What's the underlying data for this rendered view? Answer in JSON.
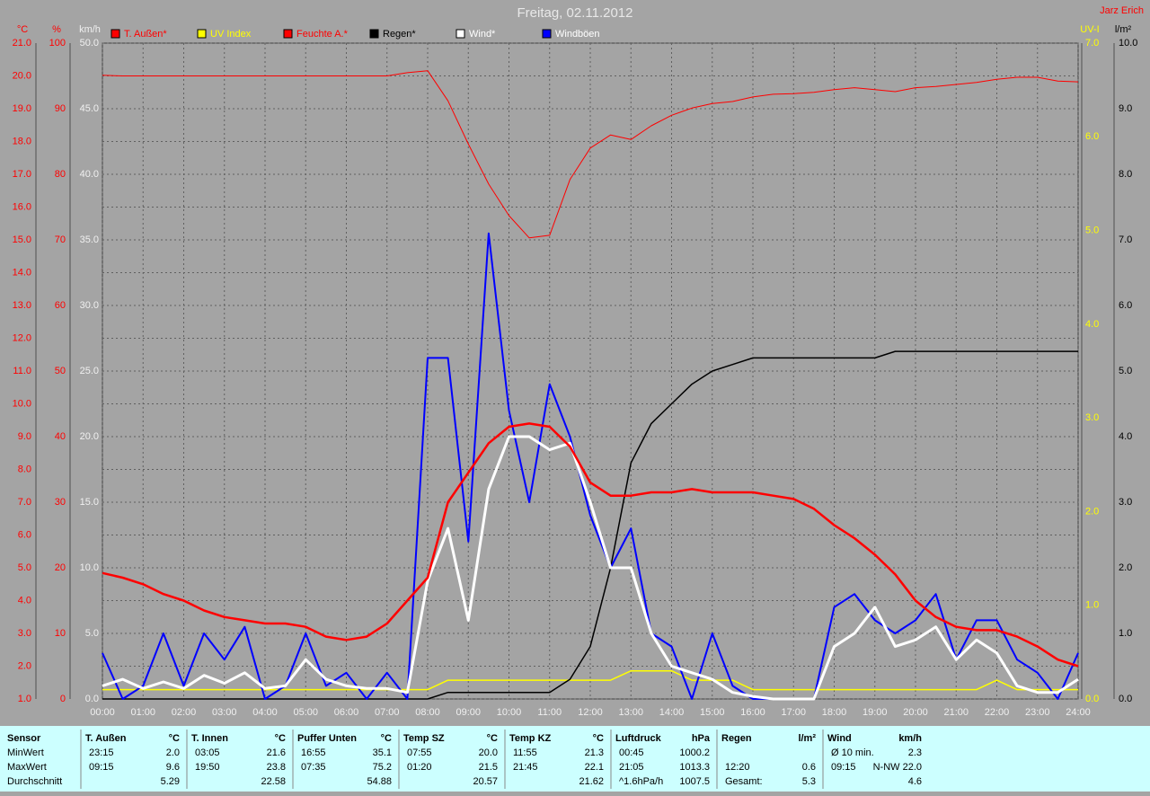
{
  "chart_data": {
    "type": "line",
    "title": "Freitag, 02.11.2012",
    "author": "Jarz Erich",
    "xlim": [
      0,
      24
    ],
    "xticks": [
      {
        "value": 0,
        "label": "00:00"
      },
      {
        "value": 1,
        "label": "01:00"
      },
      {
        "value": 2,
        "label": "02:00"
      },
      {
        "value": 3,
        "label": "03:00"
      },
      {
        "value": 4,
        "label": "04:00"
      },
      {
        "value": 5,
        "label": "05:00"
      },
      {
        "value": 6,
        "label": "06:00"
      },
      {
        "value": 7,
        "label": "07:00"
      },
      {
        "value": 8,
        "label": "08:00"
      },
      {
        "value": 9,
        "label": "09:00"
      },
      {
        "value": 10,
        "label": "10:00"
      },
      {
        "value": 11,
        "label": "11:00"
      },
      {
        "value": 12,
        "label": "12:00"
      },
      {
        "value": 13,
        "label": "13:00"
      },
      {
        "value": 14,
        "label": "14:00"
      },
      {
        "value": 15,
        "label": "15:00"
      },
      {
        "value": 16,
        "label": "16:00"
      },
      {
        "value": 17,
        "label": "17:00"
      },
      {
        "value": 18,
        "label": "18:00"
      },
      {
        "value": 19,
        "label": "19:00"
      },
      {
        "value": 20,
        "label": "20:00"
      },
      {
        "value": 21,
        "label": "21:00"
      },
      {
        "value": 22,
        "label": "22:00"
      },
      {
        "value": 23,
        "label": "23:00"
      },
      {
        "value": 24,
        "label": "24:00"
      }
    ],
    "grid": true,
    "axes": [
      {
        "label": "°C",
        "color": "#ff0000",
        "side": "left",
        "lim": [
          1,
          21
        ],
        "ticks": [
          {
            "value": 1,
            "label": "1.0"
          },
          {
            "value": 2,
            "label": "2.0"
          },
          {
            "value": 3,
            "label": "3.0"
          },
          {
            "value": 4,
            "label": "4.0"
          },
          {
            "value": 5,
            "label": "5.0"
          },
          {
            "value": 6,
            "label": "6.0"
          },
          {
            "value": 7,
            "label": "7.0"
          },
          {
            "value": 8,
            "label": "8.0"
          },
          {
            "value": 9,
            "label": "9.0"
          },
          {
            "value": 10,
            "label": "10.0"
          },
          {
            "value": 11,
            "label": "11.0"
          },
          {
            "value": 12,
            "label": "12.0"
          },
          {
            "value": 13,
            "label": "13.0"
          },
          {
            "value": 14,
            "label": "14.0"
          },
          {
            "value": 15,
            "label": "15.0"
          },
          {
            "value": 16,
            "label": "16.0"
          },
          {
            "value": 17,
            "label": "17.0"
          },
          {
            "value": 18,
            "label": "18.0"
          },
          {
            "value": 19,
            "label": "19.0"
          },
          {
            "value": 20,
            "label": "20.0"
          },
          {
            "value": 21,
            "label": "21.0"
          }
        ]
      },
      {
        "label": "%",
        "color": "#ff0000",
        "side": "left",
        "lim": [
          0,
          100
        ],
        "ticks": [
          0,
          10,
          20,
          30,
          40,
          50,
          60,
          70,
          80,
          90,
          100
        ]
      },
      {
        "label": "km/h",
        "color": "#f0f0f0",
        "side": "left",
        "lim": [
          0,
          50
        ],
        "ticks": [
          {
            "value": 0,
            "label": "0.0"
          },
          {
            "value": 5,
            "label": "5.0"
          },
          {
            "value": 10,
            "label": "10.0"
          },
          {
            "value": 15,
            "label": "15.0"
          },
          {
            "value": 20,
            "label": "20.0"
          },
          {
            "value": 25,
            "label": "25.0"
          },
          {
            "value": 30,
            "label": "30.0"
          },
          {
            "value": 35,
            "label": "35.0"
          },
          {
            "value": 40,
            "label": "40.0"
          },
          {
            "value": 45,
            "label": "45.0"
          },
          {
            "value": 50,
            "label": "50.0"
          }
        ]
      },
      {
        "label": "UV-I",
        "color": "#ffff00",
        "side": "right",
        "lim": [
          0,
          7
        ],
        "ticks": [
          {
            "value": 0,
            "label": "0.0"
          },
          {
            "value": 1,
            "label": "1.0"
          },
          {
            "value": 2,
            "label": "2.0"
          },
          {
            "value": 3,
            "label": "3.0"
          },
          {
            "value": 4,
            "label": "4.0"
          },
          {
            "value": 5,
            "label": "5.0"
          },
          {
            "value": 6,
            "label": "6.0"
          },
          {
            "value": 7,
            "label": "7.0"
          }
        ]
      },
      {
        "label": "l/m²",
        "color": "#000000",
        "side": "right",
        "lim": [
          0,
          10
        ],
        "ticks": [
          {
            "value": 0,
            "label": "0.0"
          },
          {
            "value": 1,
            "label": "1.0"
          },
          {
            "value": 2,
            "label": "2.0"
          },
          {
            "value": 3,
            "label": "3.0"
          },
          {
            "value": 4,
            "label": "4.0"
          },
          {
            "value": 5,
            "label": "5.0"
          },
          {
            "value": 6,
            "label": "6.0"
          },
          {
            "value": 7,
            "label": "7.0"
          },
          {
            "value": 8,
            "label": "8.0"
          },
          {
            "value": 9,
            "label": "9.0"
          },
          {
            "value": 10,
            "label": "10.0"
          }
        ]
      }
    ],
    "x": [
      0,
      0.5,
      1,
      1.5,
      2,
      2.5,
      3,
      3.5,
      4,
      4.5,
      5,
      5.5,
      6,
      6.5,
      7,
      7.5,
      8,
      8.5,
      9,
      9.5,
      10,
      10.5,
      11,
      11.5,
      12,
      12.5,
      13,
      13.5,
      14,
      14.5,
      15,
      15.5,
      16,
      16.5,
      17,
      17.5,
      18,
      18.5,
      19,
      19.5,
      20,
      20.5,
      21,
      21.5,
      22,
      22.5,
      23,
      23.5,
      24
    ],
    "series": [
      {
        "name": "T. Außen*",
        "color": "#ff0000",
        "axis": 0,
        "values": [
          4.84,
          4.7,
          4.5,
          4.2,
          4.0,
          3.7,
          3.5,
          3.4,
          3.3,
          3.3,
          3.2,
          2.9,
          2.8,
          2.9,
          3.3,
          4.0,
          4.7,
          7.0,
          7.9,
          8.8,
          9.3,
          9.4,
          9.3,
          8.7,
          7.6,
          7.2,
          7.2,
          7.3,
          7.3,
          7.4,
          7.3,
          7.3,
          7.3,
          7.2,
          7.1,
          6.8,
          6.3,
          5.9,
          5.4,
          4.8,
          4.0,
          3.5,
          3.2,
          3.1,
          3.1,
          2.9,
          2.6,
          2.2,
          2.0
        ]
      },
      {
        "name": "UV Index",
        "color": "#ffff00",
        "axis": 3,
        "values": [
          0.1,
          0.1,
          0.1,
          0.1,
          0.1,
          0.1,
          0.1,
          0.1,
          0.1,
          0.1,
          0.1,
          0.1,
          0.1,
          0.1,
          0.1,
          0.1,
          0.1,
          0.2,
          0.2,
          0.2,
          0.2,
          0.2,
          0.2,
          0.2,
          0.2,
          0.2,
          0.3,
          0.3,
          0.3,
          0.2,
          0.2,
          0.2,
          0.1,
          0.1,
          0.1,
          0.1,
          0.1,
          0.1,
          0.1,
          0.1,
          0.1,
          0.1,
          0.1,
          0.1,
          0.2,
          0.1,
          0.1,
          0.1,
          0.1
        ]
      },
      {
        "name": "Feuchte A.*",
        "color": "#ff0000",
        "axis": 1,
        "values": [
          95.1,
          95,
          95,
          95,
          95,
          95,
          95,
          95,
          95,
          95,
          95,
          95,
          95,
          95,
          95,
          95.5,
          95.8,
          91.2,
          84.6,
          78.5,
          73.7,
          70.3,
          70.7,
          79.2,
          84,
          86,
          85.3,
          87.4,
          89,
          90.1,
          90.8,
          91.1,
          91.8,
          92.2,
          92.3,
          92.5,
          92.9,
          93.2,
          92.9,
          92.6,
          93.2,
          93.4,
          93.7,
          94,
          94.5,
          94.8,
          94.8,
          94.2,
          94.1
        ]
      },
      {
        "name": "Regen*",
        "color": "#000000",
        "axis": 4,
        "values": [
          0,
          0,
          0,
          0,
          0,
          0,
          0,
          0,
          0,
          0,
          0,
          0,
          0,
          0,
          0,
          0,
          0,
          0.1,
          0.1,
          0.1,
          0.1,
          0.1,
          0.1,
          0.3,
          0.8,
          2.0,
          3.6,
          4.2,
          4.5,
          4.8,
          5.0,
          5.1,
          5.2,
          5.2,
          5.2,
          5.2,
          5.2,
          5.2,
          5.2,
          5.3,
          5.3,
          5.3,
          5.3,
          5.3,
          5.3,
          5.3,
          5.3,
          5.3,
          5.3
        ]
      },
      {
        "name": "Wind*",
        "color": "#ffffff",
        "axis": 2,
        "values": [
          1.0,
          1.5,
          0.8,
          1.3,
          0.8,
          1.8,
          1.2,
          2.0,
          0.8,
          1.0,
          3.0,
          1.5,
          1.0,
          0.8,
          0.8,
          0.5,
          9.0,
          13.0,
          6.0,
          16.0,
          20.0,
          20.0,
          19.0,
          19.5,
          15.0,
          10.0,
          10.0,
          5.0,
          2.5,
          2.0,
          1.5,
          0.5,
          0.2,
          0,
          0,
          0,
          4.0,
          5.0,
          7.0,
          4.0,
          4.5,
          5.5,
          3.0,
          4.5,
          3.5,
          1.0,
          0.5,
          0.5,
          1.5
        ]
      },
      {
        "name": "Windböen",
        "color": "#0000ff",
        "axis": 2,
        "values": [
          3.5,
          0,
          1,
          5,
          1,
          5,
          3,
          5.5,
          0,
          1,
          5,
          1,
          2,
          0,
          2,
          0,
          26,
          26,
          12,
          35.5,
          22,
          15,
          24,
          20,
          14,
          10,
          13,
          5,
          4,
          0,
          5,
          1,
          0,
          0,
          0,
          0,
          7,
          8,
          6,
          5,
          6,
          8,
          3,
          6,
          6,
          3,
          2,
          0,
          3.5
        ]
      }
    ]
  },
  "stats": {
    "labels": [
      "Sensor",
      "MinWert",
      "MaxWert",
      "Durchschnitt"
    ],
    "groups": [
      {
        "name": "T. Außen",
        "unit": "°C",
        "min": [
          "23:15",
          "2.0"
        ],
        "max": [
          "09:15",
          "9.6"
        ],
        "avg": [
          null,
          "5.29"
        ]
      },
      {
        "name": "T. Innen",
        "unit": "°C",
        "min": [
          "03:05",
          "21.6"
        ],
        "max": [
          "19:50",
          "23.8"
        ],
        "avg": [
          null,
          "22.58"
        ]
      },
      {
        "name": "Puffer Unten",
        "unit": "°C",
        "min": [
          "16:55",
          "35.1"
        ],
        "max": [
          "07:35",
          "75.2"
        ],
        "avg": [
          null,
          "54.88"
        ]
      },
      {
        "name": "Temp SZ",
        "unit": "°C",
        "min": [
          "07:55",
          "20.0"
        ],
        "max": [
          "01:20",
          "21.5"
        ],
        "avg": [
          null,
          "20.57"
        ]
      },
      {
        "name": "Temp KZ",
        "unit": "°C",
        "min": [
          "11:55",
          "21.3"
        ],
        "max": [
          "21:45",
          "22.1"
        ],
        "avg": [
          null,
          "21.62"
        ]
      },
      {
        "name": "Luftdruck",
        "unit": "hPa",
        "min": [
          "00:45",
          "1000.2"
        ],
        "max": [
          "21:05",
          "1013.3"
        ],
        "avg": [
          "^1.6hPa/h",
          "1007.5"
        ]
      },
      {
        "name": "Regen",
        "unit": "l/m²",
        "min": [
          null,
          null
        ],
        "max": [
          "12:20",
          "0.6"
        ],
        "avg": [
          "Gesamt:",
          "5.3"
        ]
      },
      {
        "name": "Wind",
        "unit": "km/h",
        "min": [
          "Ø 10 min.",
          "2.3"
        ],
        "max": [
          "09:15",
          "N-NW 22.0"
        ],
        "avg": [
          null,
          "4.6"
        ]
      }
    ]
  }
}
